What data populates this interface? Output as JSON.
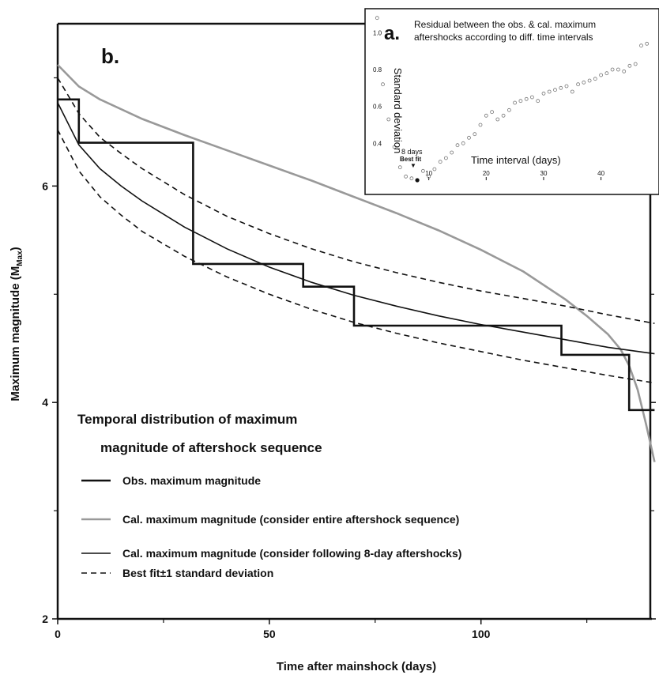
{
  "colors": {
    "axis": "#111111",
    "observed": "#111111",
    "calc_entire": "#999999",
    "calc_8day": "#111111",
    "inset_marker": "#777777"
  },
  "chart_data": [
    {
      "panel": "b.",
      "type": "line",
      "title": "Temporal distribution of maximum magnitude of aftershock sequence",
      "title_lines": [
        "Temporal distribution of maximum",
        "magnitude of aftershock sequence"
      ],
      "xlabel": "Time after mainshock (days)",
      "ylabel_main": "Maximum magnitude (M",
      "ylabel_sub": "Max",
      "ylabel_close": ")",
      "xlim": [
        0,
        140
      ],
      "ylim": [
        2,
        7.5
      ],
      "xticks": [
        0,
        50,
        100
      ],
      "yticks": [
        2,
        4,
        6
      ],
      "legend_placement": "bottom-left",
      "series": [
        {
          "name": "Obs. maximum magnitude",
          "style": "step",
          "x": [
            0,
            5,
            5,
            32,
            32,
            58,
            58,
            70,
            70,
            119,
            119,
            135,
            135,
            141
          ],
          "y": [
            6.8,
            6.8,
            6.4,
            6.4,
            5.28,
            5.28,
            5.07,
            5.07,
            4.71,
            4.71,
            4.44,
            4.44,
            3.93,
            3.93
          ]
        },
        {
          "name": "Cal. maximum magnitude (consider entire aftershock sequence)",
          "style": "solid-gray",
          "x": [
            0,
            5,
            10,
            20,
            30,
            40,
            50,
            60,
            70,
            80,
            90,
            100,
            110,
            120,
            125,
            130,
            133,
            135,
            137,
            139,
            141
          ],
          "y": [
            7.12,
            6.92,
            6.8,
            6.62,
            6.47,
            6.33,
            6.19,
            6.05,
            5.9,
            5.75,
            5.59,
            5.41,
            5.21,
            4.95,
            4.8,
            4.63,
            4.49,
            4.34,
            4.12,
            3.8,
            3.45
          ]
        },
        {
          "name": "Cal. maximum magnitude (consider following 8-day aftershocks)",
          "style": "solid-black",
          "x": [
            0,
            5,
            10,
            15,
            20,
            30,
            40,
            50,
            60,
            70,
            80,
            90,
            100,
            110,
            120,
            130,
            141
          ],
          "y": [
            6.77,
            6.38,
            6.16,
            6.0,
            5.86,
            5.62,
            5.42,
            5.25,
            5.11,
            4.99,
            4.89,
            4.8,
            4.72,
            4.65,
            4.58,
            4.51,
            4.45
          ]
        },
        {
          "name": "Best fit±1 standard deviation",
          "style": "dashed",
          "x": [
            0,
            5,
            10,
            15,
            20,
            30,
            40,
            50,
            60,
            70,
            80,
            90,
            100,
            110,
            120,
            130,
            141
          ],
          "y": [
            7.0,
            6.67,
            6.45,
            6.3,
            6.16,
            5.92,
            5.72,
            5.56,
            5.42,
            5.3,
            5.2,
            5.11,
            5.03,
            4.96,
            4.89,
            4.81,
            4.73
          ]
        },
        {
          "style": "dashed",
          "x": [
            0,
            5,
            10,
            15,
            20,
            30,
            40,
            50,
            60,
            70,
            80,
            90,
            100,
            110,
            120,
            130,
            141
          ],
          "y": [
            6.52,
            6.14,
            5.9,
            5.73,
            5.58,
            5.35,
            5.16,
            5.0,
            4.86,
            4.74,
            4.64,
            4.55,
            4.47,
            4.39,
            4.32,
            4.25,
            4.18
          ]
        }
      ]
    },
    {
      "panel": "a.",
      "type": "scatter",
      "title_lines": [
        "Residual between the obs. & cal. maximum",
        "aftershocks according to diff. time intervals"
      ],
      "xlabel": "Time interval (days)",
      "ylabel": "Standard deviation",
      "xlim": [
        0,
        49
      ],
      "ylim": [
        0.2,
        1.1
      ],
      "xticks": [
        10,
        20,
        30,
        40
      ],
      "yticks": [
        0.4,
        0.6,
        0.8,
        1.0
      ],
      "best_fit": {
        "x": 8,
        "y": 0.2,
        "label_days": "8 days",
        "label_fit": "Best fit"
      },
      "x": [
        1,
        2,
        3,
        4,
        5,
        6,
        7,
        8,
        9,
        10,
        11,
        12,
        13,
        14,
        15,
        16,
        17,
        18,
        19,
        20,
        21,
        22,
        23,
        24,
        25,
        26,
        27,
        28,
        29,
        30,
        31,
        32,
        33,
        34,
        35,
        36,
        37,
        38,
        39,
        40,
        41,
        42,
        43,
        44,
        45,
        46,
        47,
        48
      ],
      "y": [
        1.08,
        0.72,
        0.53,
        0.38,
        0.27,
        0.22,
        0.21,
        0.2,
        0.25,
        0.22,
        0.26,
        0.3,
        0.32,
        0.35,
        0.39,
        0.4,
        0.43,
        0.45,
        0.5,
        0.55,
        0.57,
        0.53,
        0.55,
        0.58,
        0.62,
        0.63,
        0.64,
        0.65,
        0.63,
        0.67,
        0.68,
        0.69,
        0.7,
        0.71,
        0.68,
        0.72,
        0.73,
        0.74,
        0.75,
        0.77,
        0.78,
        0.8,
        0.8,
        0.79,
        0.82,
        0.83,
        0.93,
        0.94
      ]
    }
  ]
}
